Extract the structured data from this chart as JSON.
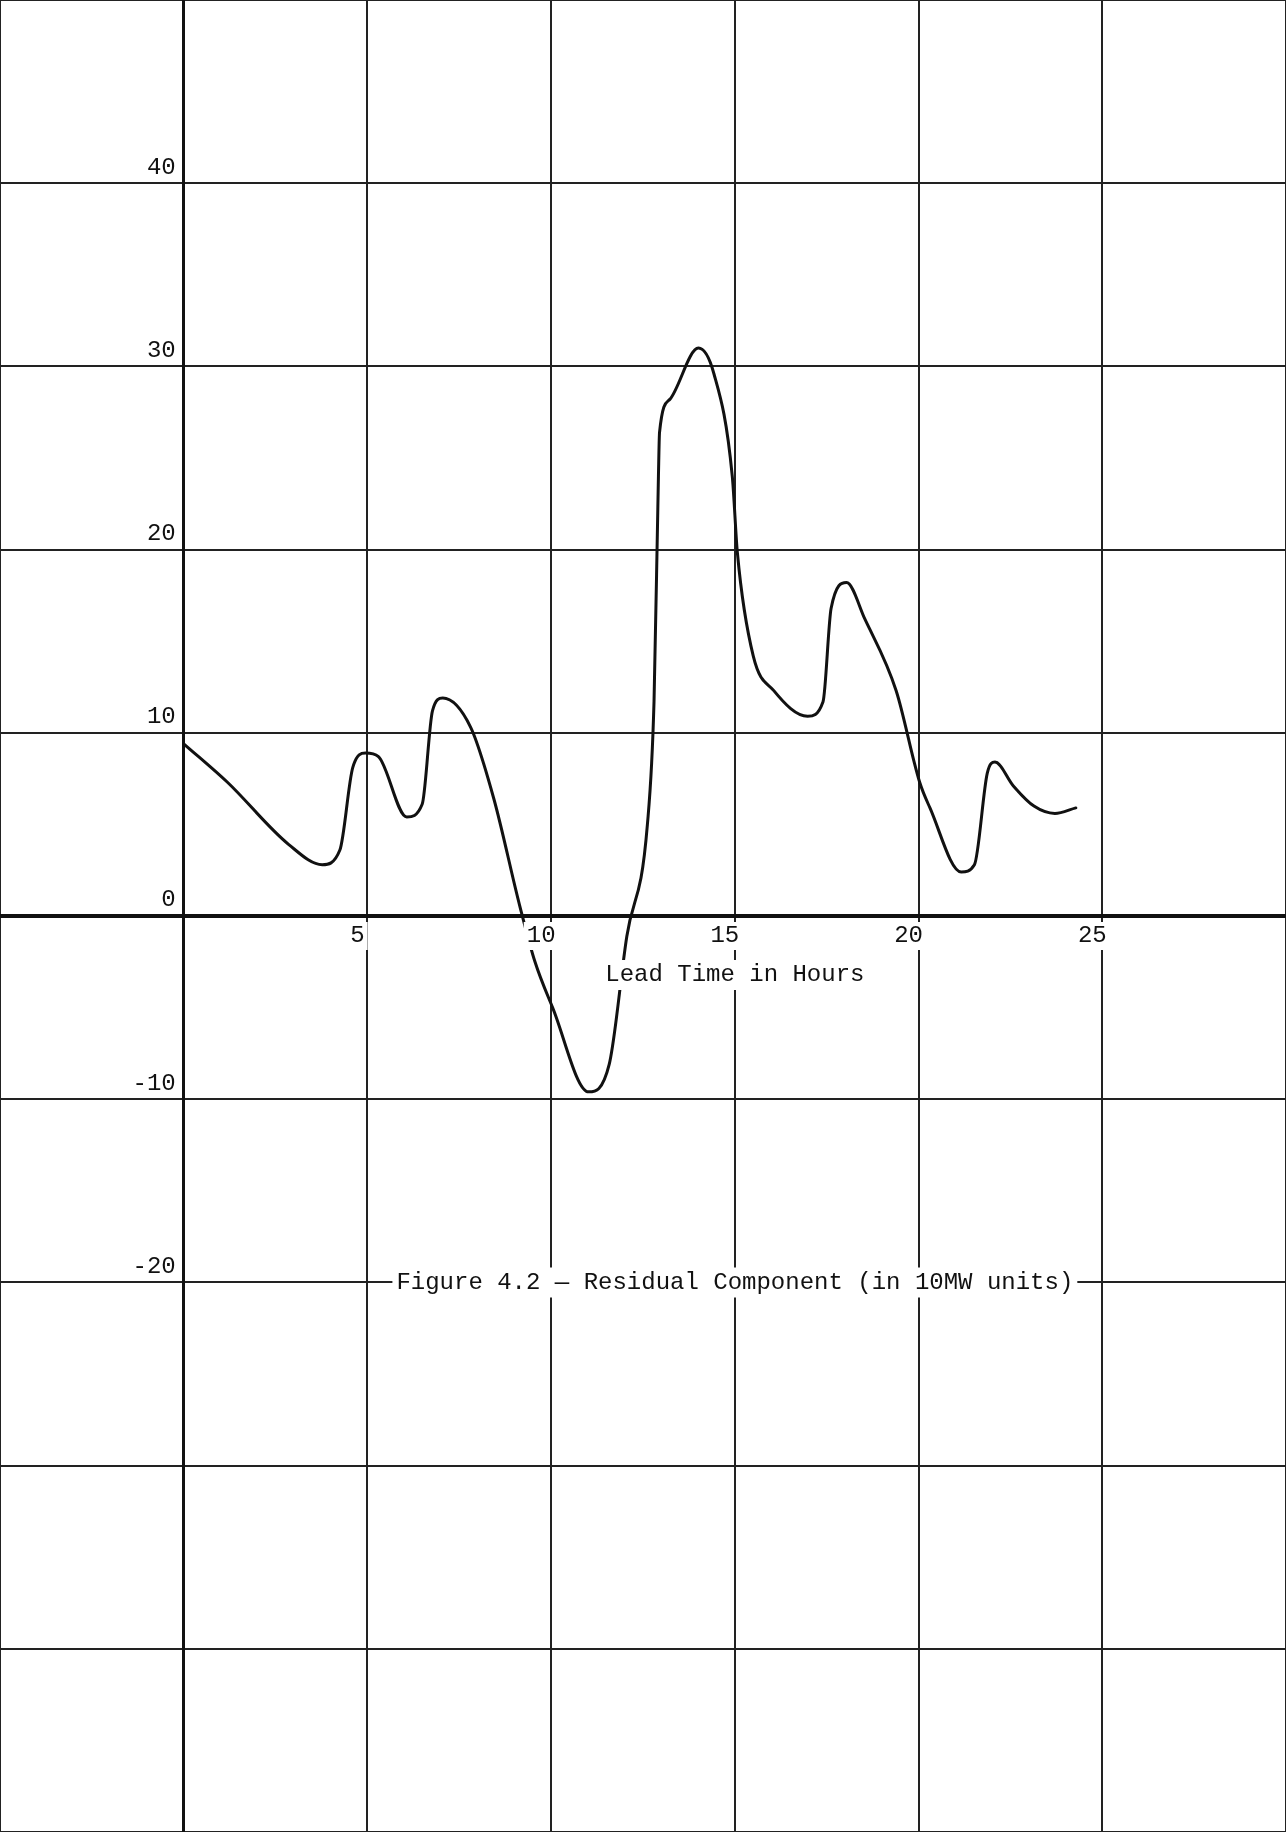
{
  "chart_data": {
    "type": "line",
    "title": "Figure 4.2 — Residual Component (in 10MW units)",
    "xlabel": "Lead Time in Hours",
    "x": [
      0,
      1.19,
      2.86,
      3.77,
      4.25,
      4.6,
      4.95,
      5.3,
      6.07,
      6.49,
      6.77,
      7.05,
      7.81,
      8.44,
      9.14,
      9.56,
      10.04,
      11.02,
      11.58,
      12.06,
      12.62,
      12.8,
      12.92,
      12.95,
      13.23,
      14.01,
      14.43,
      14.93,
      15.07,
      15.5,
      16.06,
      16.98,
      17.4,
      17.62,
      18.04,
      18.54,
      19.39,
      20.03,
      20.31,
      21.16,
      21.52,
      21.87,
      22.08,
      22.58,
      23.14,
      23.71,
      24.28
    ],
    "series": [
      {
        "color": "#111111",
        "values": [
          9.4,
          7.3,
          3.9,
          2.8,
          3.6,
          8.1,
          8.9,
          8.7,
          5.4,
          6.1,
          11.2,
          11.9,
          10.3,
          6.4,
          0.6,
          -2.5,
          -5.0,
          -9.6,
          -8.1,
          -1.1,
          5.0,
          11.7,
          24.0,
          26.4,
          28.2,
          31.0,
          29.6,
          24.0,
          19.8,
          14.2,
          12.3,
          10.9,
          11.7,
          16.8,
          18.2,
          16.2,
          12.3,
          7.3,
          5.9,
          2.4,
          2.8,
          7.8,
          8.4,
          7.1,
          6.0,
          5.6,
          5.9
        ]
      }
    ],
    "xlim": [
      -5,
      30
    ],
    "ylim": [
      -50,
      50
    ],
    "xticks": [
      {
        "value": -5,
        "label": null
      },
      {
        "value": 0,
        "label": null
      },
      5,
      10,
      15,
      20,
      25,
      {
        "value": 30,
        "label": null
      }
    ],
    "yticks": [
      {
        "value": -50,
        "label": null
      },
      {
        "value": -40,
        "label": null
      },
      {
        "value": -30,
        "label": null
      },
      -20,
      -10,
      0,
      10,
      20,
      30,
      40,
      {
        "value": 50,
        "label": null
      }
    ],
    "grid": true,
    "marker": "none",
    "line_style": "solid"
  }
}
